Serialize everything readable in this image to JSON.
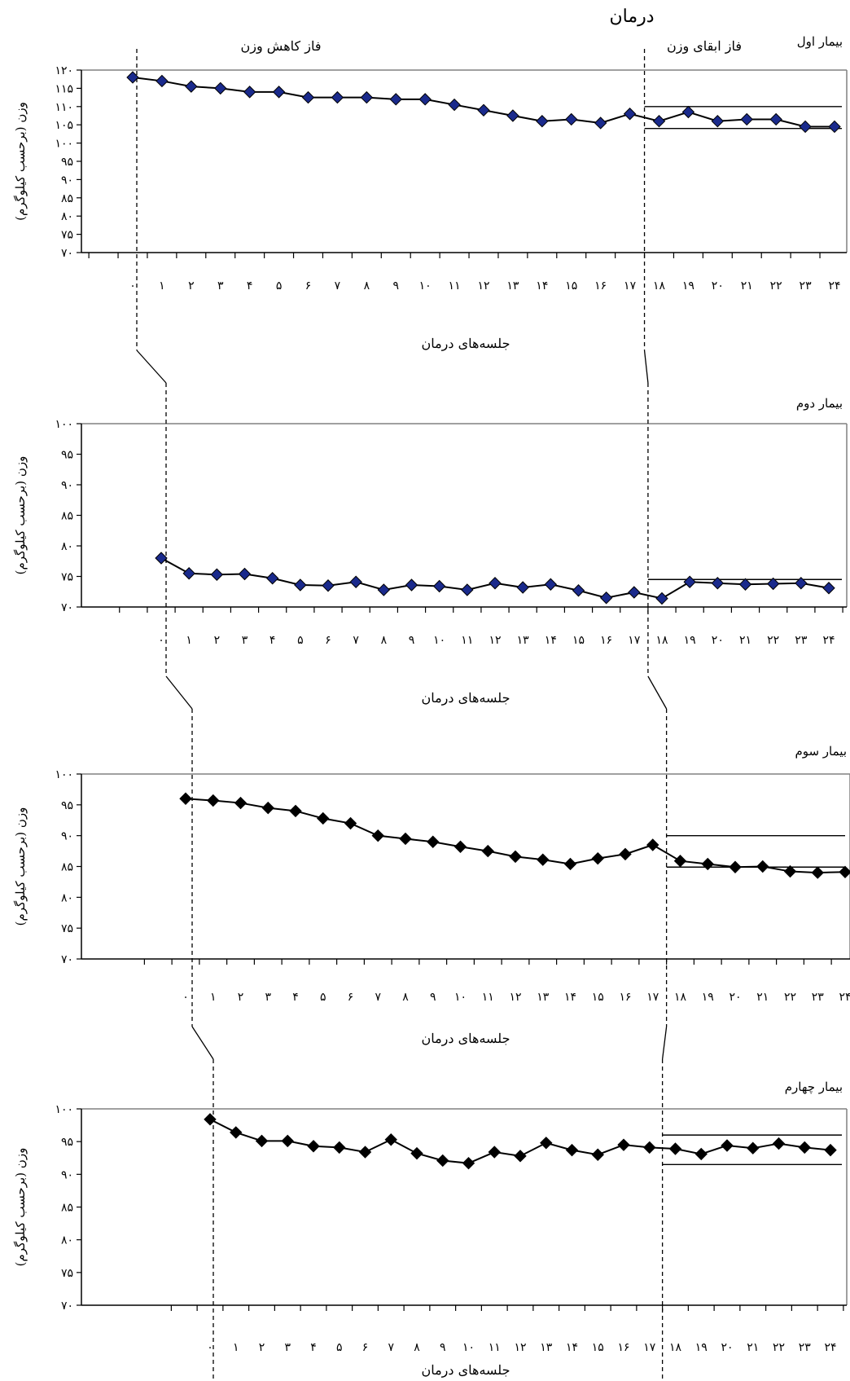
{
  "figure": {
    "header": "درمان",
    "phase_loss_label": "فاز کاهش وزن",
    "phase_maintenance_label": "فاز ابقای وزن"
  },
  "chart_data": [
    {
      "type": "line",
      "panel_label": "بیمار اول",
      "ylabel": "وزن (برحسب کیلوگرم)",
      "xlabel": "جلسه‌های درمان",
      "ylim": [
        70,
        120
      ],
      "yticks": [
        "۷۰",
        "۷۵",
        "۸۰",
        "۸۵",
        "۹۰",
        "۹۵",
        "۱۰۰",
        "۱۰۵",
        "۱۱۰",
        "۱۱۵",
        "۱۲۰"
      ],
      "x": [
        "۰",
        "۱",
        "۲",
        "۳",
        "۴",
        "۵",
        "۶",
        "۷",
        "۸",
        "۹",
        "۱۰",
        "۱۱",
        "۱۲",
        "۱۳",
        "۱۴",
        "۱۵",
        "۱۶",
        "۱۷",
        "۱۸",
        "۱۹",
        "۲۰",
        "۲۱",
        "۲۲",
        "۲۳",
        "۲۴"
      ],
      "series": [
        {
          "values": [
            118,
            117,
            115.5,
            115,
            114,
            114,
            112.5,
            112.5,
            112.5,
            112,
            112,
            110.5,
            109,
            107.5,
            106,
            106.5,
            105.5,
            108,
            106,
            108.5,
            106,
            106.5,
            106.5,
            104.5,
            104.5
          ],
          "marker_color": "#1a2a8c"
        }
      ],
      "maintenance_band": [
        104,
        110
      ]
    },
    {
      "type": "line",
      "panel_label": "بیمار دوم",
      "ylabel": "وزن (برحسب کیلوگرم)",
      "xlabel": "جلسه‌های درمان",
      "ylim": [
        70,
        100
      ],
      "yticks": [
        "۷۰",
        "۷۵",
        "۸۰",
        "۸۵",
        "۹۰",
        "۹۵",
        "۱۰۰"
      ],
      "x": [
        "۰",
        "۱",
        "۲",
        "۳",
        "۴",
        "۵",
        "۶",
        "۷",
        "۸",
        "۹",
        "۱۰",
        "۱۱",
        "۱۲",
        "۱۳",
        "۱۴",
        "۱۵",
        "۱۶",
        "۱۷",
        "۱۸",
        "۱۹",
        "۲۰",
        "۲۱",
        "۲۲",
        "۲۳",
        "۲۴"
      ],
      "series": [
        {
          "values": [
            78,
            75.5,
            75.3,
            75.4,
            74.7,
            73.6,
            73.5,
            74.1,
            72.8,
            73.6,
            73.4,
            72.8,
            73.9,
            73.2,
            73.7,
            72.7,
            71.5,
            72.4,
            71.4,
            74.1,
            73.9,
            73.7,
            73.8,
            73.9,
            73.1
          ],
          "marker_color": "#1a2a8c"
        }
      ],
      "maintenance_band": [
        74.5,
        74.5
      ]
    },
    {
      "type": "line",
      "panel_label": "بیمار سوم",
      "ylabel": "وزن (برحسب کیلوگرم)",
      "xlabel": "جلسه‌های درمان",
      "ylim": [
        70,
        100
      ],
      "yticks": [
        "۷۰",
        "۷۵",
        "۸۰",
        "۸۵",
        "۹۰",
        "۹۵",
        "۱۰۰"
      ],
      "x": [
        "۰",
        "۱",
        "۲",
        "۳",
        "۴",
        "۵",
        "۶",
        "۷",
        "۸",
        "۹",
        "۱۰",
        "۱۱",
        "۱۲",
        "۱۳",
        "۱۴",
        "۱۵",
        "۱۶",
        "۱۷",
        "۱۸",
        "۱۹",
        "۲۰",
        "۲۱",
        "۲۲",
        "۲۳",
        "۲۴"
      ],
      "series": [
        {
          "values": [
            96,
            95.7,
            95.3,
            94.5,
            94,
            92.8,
            92,
            90,
            89.5,
            89,
            88.2,
            87.5,
            86.6,
            86.1,
            85.4,
            86.3,
            87,
            88.5,
            85.9,
            85.4,
            84.9,
            85,
            84.2,
            84,
            84.1
          ],
          "marker_color": "#000000"
        }
      ],
      "maintenance_band": [
        84.9,
        90
      ]
    },
    {
      "type": "line",
      "panel_label": "بیمار چهارم",
      "ylabel": "وزن (برحسب کیلوگرم)",
      "xlabel": "جلسه‌های درمان",
      "ylim": [
        70,
        100
      ],
      "yticks": [
        "۷۰",
        "۷۵",
        "۸۰",
        "۸۵",
        "۹۰",
        "۹۵",
        "۱۰۰"
      ],
      "x": [
        "۰",
        "۱",
        "۲",
        "۳",
        "۴",
        "۵",
        "۶",
        "۷",
        "۸",
        "۹",
        "۱۰",
        "۱۱",
        "۱۲",
        "۱۳",
        "۱۴",
        "۱۵",
        "۱۶",
        "۱۷",
        "۱۸",
        "۱۹",
        "۲۰",
        "۲۱",
        "۲۲",
        "۲۳",
        "۲۴"
      ],
      "series": [
        {
          "values": [
            98.4,
            96.4,
            95.1,
            95.1,
            94.3,
            94.1,
            93.4,
            95.3,
            93.2,
            92.1,
            91.7,
            93.4,
            92.8,
            94.8,
            93.7,
            93,
            94.5,
            94.1,
            93.9,
            93.1,
            94.4,
            94,
            94.7,
            94.1,
            93.7
          ],
          "marker_color": "#000000"
        }
      ],
      "maintenance_band": [
        91.5,
        96
      ]
    }
  ]
}
